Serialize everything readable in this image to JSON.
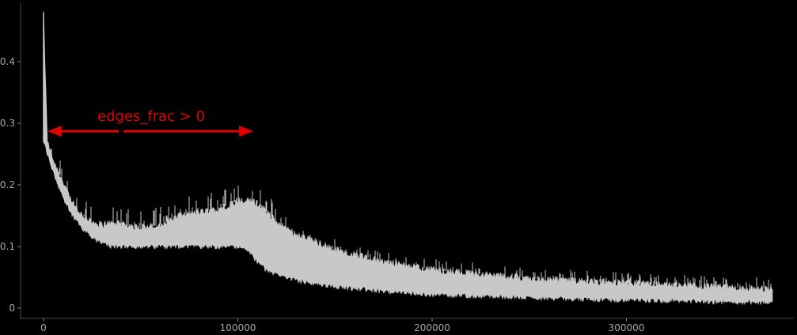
{
  "chart_data": {
    "type": "area",
    "title": "",
    "xlabel": "",
    "ylabel": "",
    "xlim": [
      -5000,
      385000
    ],
    "ylim": [
      -0.01,
      0.48
    ],
    "x_ticks": [
      {
        "value": 0,
        "label": "0"
      },
      {
        "value": 100000,
        "label": "100000"
      },
      {
        "value": 200000,
        "label": "200000"
      },
      {
        "value": 300000,
        "label": "300000"
      }
    ],
    "y_ticks": [
      {
        "value": 0,
        "label": "0"
      },
      {
        "value": 0.1,
        "label": "0.1"
      },
      {
        "value": 0.2,
        "label": "0.2"
      },
      {
        "value": 0.3,
        "label": "0.3"
      },
      {
        "value": 0.4,
        "label": "0.4"
      }
    ],
    "grid": false,
    "legend": "none",
    "series_color": "#c8c8c8",
    "series": [
      {
        "style": "noisy-band",
        "x": [
          0,
          2000,
          5000,
          10000,
          15000,
          20000,
          25000,
          30000,
          35000,
          40000,
          50000,
          60000,
          70000,
          80000,
          90000,
          100000,
          105000,
          110000,
          115000,
          120000,
          130000,
          150000,
          175000,
          200000,
          250000,
          300000,
          350000,
          375000
        ],
        "lower": [
          0.27,
          0.25,
          0.22,
          0.18,
          0.15,
          0.13,
          0.115,
          0.105,
          0.1,
          0.1,
          0.1,
          0.1,
          0.1,
          0.1,
          0.1,
          0.1,
          0.095,
          0.075,
          0.06,
          0.055,
          0.045,
          0.035,
          0.027,
          0.022,
          0.017,
          0.013,
          0.01,
          0.009
        ],
        "upper": [
          0.48,
          0.27,
          0.24,
          0.205,
          0.17,
          0.15,
          0.14,
          0.135,
          0.14,
          0.135,
          0.13,
          0.135,
          0.15,
          0.155,
          0.16,
          0.175,
          0.175,
          0.17,
          0.155,
          0.14,
          0.12,
          0.095,
          0.075,
          0.062,
          0.048,
          0.04,
          0.034,
          0.031
        ]
      }
    ],
    "annotation": {
      "text": "edges_frac > 0",
      "color": "#e00000",
      "span": [
        2000,
        108000
      ],
      "y": 0.287
    }
  }
}
